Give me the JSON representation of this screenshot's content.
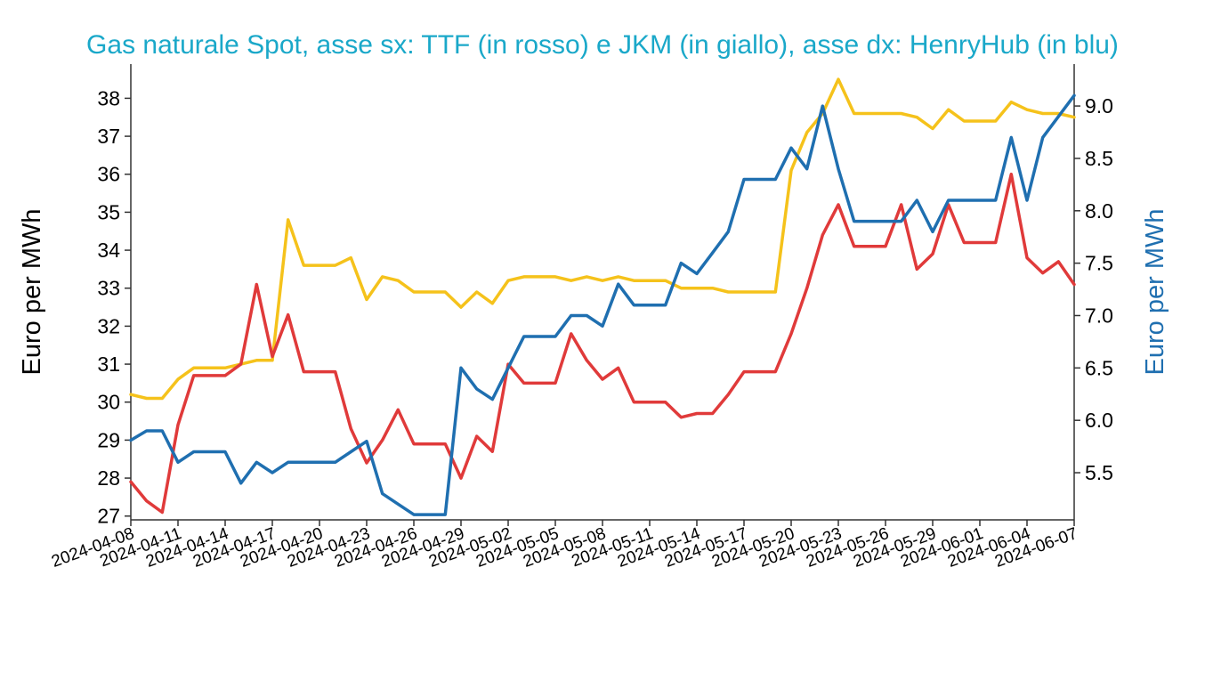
{
  "chart_data": {
    "type": "line",
    "title": "Gas naturale Spot, asse sx: TTF (in rosso) e JKM (in giallo), asse dx: HenryHub (in blu)",
    "ylabel_left": "Euro per MWh",
    "ylabel_right": "Euro per MWh",
    "x_start": "2024-04-08",
    "x_end": "2024-06-07",
    "x_tick_labels": [
      "2024-04-08",
      "2024-04-11",
      "2024-04-14",
      "2024-04-17",
      "2024-04-20",
      "2024-04-23",
      "2024-04-26",
      "2024-04-29",
      "2024-05-02",
      "2024-05-05",
      "2024-05-08",
      "2024-05-11",
      "2024-05-14",
      "2024-05-17",
      "2024-05-20",
      "2024-05-23",
      "2024-05-26",
      "2024-05-29",
      "2024-06-01",
      "2024-06-04",
      "2024-06-07"
    ],
    "y_left": {
      "min": 26.9,
      "max": 38.9,
      "ticks": [
        "27",
        "28",
        "29",
        "30",
        "31",
        "32",
        "33",
        "34",
        "35",
        "36",
        "37",
        "38"
      ]
    },
    "y_right": {
      "min": 5.05,
      "max": 9.4,
      "ticks": [
        "5.5",
        "6.0",
        "6.5",
        "7.0",
        "7.5",
        "8.0",
        "8.5",
        "9.0"
      ]
    },
    "series": [
      {
        "key": "jkm",
        "axis": "left",
        "color": "#f5c21b",
        "points": [
          [
            "2024-04-08",
            30.2
          ],
          [
            "2024-04-09",
            30.1
          ],
          [
            "2024-04-10",
            30.1
          ],
          [
            "2024-04-11",
            30.6
          ],
          [
            "2024-04-12",
            30.9
          ],
          [
            "2024-04-13",
            30.9
          ],
          [
            "2024-04-14",
            30.9
          ],
          [
            "2024-04-15",
            31.0
          ],
          [
            "2024-04-16",
            31.1
          ],
          [
            "2024-04-17",
            31.1
          ],
          [
            "2024-04-18",
            34.8
          ],
          [
            "2024-04-19",
            33.6
          ],
          [
            "2024-04-20",
            33.6
          ],
          [
            "2024-04-21",
            33.6
          ],
          [
            "2024-04-22",
            33.8
          ],
          [
            "2024-04-23",
            32.7
          ],
          [
            "2024-04-24",
            33.3
          ],
          [
            "2024-04-25",
            33.2
          ],
          [
            "2024-04-26",
            32.9
          ],
          [
            "2024-04-27",
            32.9
          ],
          [
            "2024-04-28",
            32.9
          ],
          [
            "2024-04-29",
            32.5
          ],
          [
            "2024-04-30",
            32.9
          ],
          [
            "2024-05-01",
            32.6
          ],
          [
            "2024-05-02",
            33.2
          ],
          [
            "2024-05-03",
            33.3
          ],
          [
            "2024-05-04",
            33.3
          ],
          [
            "2024-05-05",
            33.3
          ],
          [
            "2024-05-06",
            33.2
          ],
          [
            "2024-05-07",
            33.3
          ],
          [
            "2024-05-08",
            33.2
          ],
          [
            "2024-05-09",
            33.3
          ],
          [
            "2024-05-10",
            33.2
          ],
          [
            "2024-05-11",
            33.2
          ],
          [
            "2024-05-12",
            33.2
          ],
          [
            "2024-05-13",
            33.0
          ],
          [
            "2024-05-14",
            33.0
          ],
          [
            "2024-05-15",
            33.0
          ],
          [
            "2024-05-16",
            32.9
          ],
          [
            "2024-05-17",
            32.9
          ],
          [
            "2024-05-18",
            32.9
          ],
          [
            "2024-05-19",
            32.9
          ],
          [
            "2024-05-20",
            36.1
          ],
          [
            "2024-05-21",
            37.1
          ],
          [
            "2024-05-22",
            37.6
          ],
          [
            "2024-05-23",
            38.5
          ],
          [
            "2024-05-24",
            37.6
          ],
          [
            "2024-05-25",
            37.6
          ],
          [
            "2024-05-26",
            37.6
          ],
          [
            "2024-05-27",
            37.6
          ],
          [
            "2024-05-28",
            37.5
          ],
          [
            "2024-05-29",
            37.2
          ],
          [
            "2024-05-30",
            37.7
          ],
          [
            "2024-05-31",
            37.4
          ],
          [
            "2024-06-01",
            37.4
          ],
          [
            "2024-06-02",
            37.4
          ],
          [
            "2024-06-03",
            37.9
          ],
          [
            "2024-06-04",
            37.7
          ],
          [
            "2024-06-05",
            37.6
          ],
          [
            "2024-06-06",
            37.6
          ],
          [
            "2024-06-07",
            37.5
          ]
        ]
      },
      {
        "key": "ttf",
        "axis": "left",
        "color": "#e03a3a",
        "points": [
          [
            "2024-04-08",
            27.9
          ],
          [
            "2024-04-09",
            27.4
          ],
          [
            "2024-04-10",
            27.1
          ],
          [
            "2024-04-11",
            29.4
          ],
          [
            "2024-04-12",
            30.7
          ],
          [
            "2024-04-13",
            30.7
          ],
          [
            "2024-04-14",
            30.7
          ],
          [
            "2024-04-15",
            31.0
          ],
          [
            "2024-04-16",
            33.1
          ],
          [
            "2024-04-17",
            31.2
          ],
          [
            "2024-04-18",
            32.3
          ],
          [
            "2024-04-19",
            30.8
          ],
          [
            "2024-04-20",
            30.8
          ],
          [
            "2024-04-21",
            30.8
          ],
          [
            "2024-04-22",
            29.3
          ],
          [
            "2024-04-23",
            28.4
          ],
          [
            "2024-04-24",
            29.0
          ],
          [
            "2024-04-25",
            29.8
          ],
          [
            "2024-04-26",
            28.9
          ],
          [
            "2024-04-27",
            28.9
          ],
          [
            "2024-04-28",
            28.9
          ],
          [
            "2024-04-29",
            28.0
          ],
          [
            "2024-04-30",
            29.1
          ],
          [
            "2024-05-01",
            28.7
          ],
          [
            "2024-05-02",
            31.0
          ],
          [
            "2024-05-03",
            30.5
          ],
          [
            "2024-05-04",
            30.5
          ],
          [
            "2024-05-05",
            30.5
          ],
          [
            "2024-05-06",
            31.8
          ],
          [
            "2024-05-07",
            31.1
          ],
          [
            "2024-05-08",
            30.6
          ],
          [
            "2024-05-09",
            30.9
          ],
          [
            "2024-05-10",
            30.0
          ],
          [
            "2024-05-11",
            30.0
          ],
          [
            "2024-05-12",
            30.0
          ],
          [
            "2024-05-13",
            29.6
          ],
          [
            "2024-05-14",
            29.7
          ],
          [
            "2024-05-15",
            29.7
          ],
          [
            "2024-05-16",
            30.2
          ],
          [
            "2024-05-17",
            30.8
          ],
          [
            "2024-05-18",
            30.8
          ],
          [
            "2024-05-19",
            30.8
          ],
          [
            "2024-05-20",
            31.8
          ],
          [
            "2024-05-21",
            33.0
          ],
          [
            "2024-05-22",
            34.4
          ],
          [
            "2024-05-23",
            35.2
          ],
          [
            "2024-05-24",
            34.1
          ],
          [
            "2024-05-25",
            34.1
          ],
          [
            "2024-05-26",
            34.1
          ],
          [
            "2024-05-27",
            35.2
          ],
          [
            "2024-05-28",
            33.5
          ],
          [
            "2024-05-29",
            33.9
          ],
          [
            "2024-05-30",
            35.2
          ],
          [
            "2024-05-31",
            34.2
          ],
          [
            "2024-06-01",
            34.2
          ],
          [
            "2024-06-02",
            34.2
          ],
          [
            "2024-06-03",
            36.0
          ],
          [
            "2024-06-04",
            33.8
          ],
          [
            "2024-06-05",
            33.4
          ],
          [
            "2024-06-06",
            33.7
          ],
          [
            "2024-06-07",
            33.1
          ]
        ]
      },
      {
        "key": "henryhub",
        "axis": "right",
        "color": "#1f6fb0",
        "points": [
          [
            "2024-04-08",
            5.81
          ],
          [
            "2024-04-09",
            5.9
          ],
          [
            "2024-04-10",
            5.9
          ],
          [
            "2024-04-11",
            5.6
          ],
          [
            "2024-04-12",
            5.7
          ],
          [
            "2024-04-13",
            5.7
          ],
          [
            "2024-04-14",
            5.7
          ],
          [
            "2024-04-15",
            5.4
          ],
          [
            "2024-04-16",
            5.6
          ],
          [
            "2024-04-17",
            5.5
          ],
          [
            "2024-04-18",
            5.6
          ],
          [
            "2024-04-19",
            5.6
          ],
          [
            "2024-04-20",
            5.6
          ],
          [
            "2024-04-21",
            5.6
          ],
          [
            "2024-04-22",
            5.7
          ],
          [
            "2024-04-23",
            5.8
          ],
          [
            "2024-04-24",
            5.3
          ],
          [
            "2024-04-25",
            5.2
          ],
          [
            "2024-04-26",
            5.1
          ],
          [
            "2024-04-27",
            5.1
          ],
          [
            "2024-04-28",
            5.1
          ],
          [
            "2024-04-29",
            6.5
          ],
          [
            "2024-04-30",
            6.3
          ],
          [
            "2024-05-01",
            6.2
          ],
          [
            "2024-05-02",
            6.5
          ],
          [
            "2024-05-03",
            6.8
          ],
          [
            "2024-05-04",
            6.8
          ],
          [
            "2024-05-05",
            6.8
          ],
          [
            "2024-05-06",
            7.0
          ],
          [
            "2024-05-07",
            7.0
          ],
          [
            "2024-05-08",
            6.9
          ],
          [
            "2024-05-09",
            7.3
          ],
          [
            "2024-05-10",
            7.1
          ],
          [
            "2024-05-11",
            7.1
          ],
          [
            "2024-05-12",
            7.1
          ],
          [
            "2024-05-13",
            7.5
          ],
          [
            "2024-05-14",
            7.4
          ],
          [
            "2024-05-15",
            7.6
          ],
          [
            "2024-05-16",
            7.8
          ],
          [
            "2024-05-17",
            8.3
          ],
          [
            "2024-05-18",
            8.3
          ],
          [
            "2024-05-19",
            8.3
          ],
          [
            "2024-05-20",
            8.6
          ],
          [
            "2024-05-21",
            8.4
          ],
          [
            "2024-05-22",
            9.0
          ],
          [
            "2024-05-23",
            8.4
          ],
          [
            "2024-05-24",
            7.9
          ],
          [
            "2024-05-25",
            7.9
          ],
          [
            "2024-05-26",
            7.9
          ],
          [
            "2024-05-27",
            7.9
          ],
          [
            "2024-05-28",
            8.1
          ],
          [
            "2024-05-29",
            7.8
          ],
          [
            "2024-05-30",
            8.1
          ],
          [
            "2024-05-31",
            8.1
          ],
          [
            "2024-06-01",
            8.1
          ],
          [
            "2024-06-02",
            8.1
          ],
          [
            "2024-06-03",
            8.7
          ],
          [
            "2024-06-04",
            8.1
          ],
          [
            "2024-06-05",
            8.7
          ],
          [
            "2024-06-06",
            8.9
          ],
          [
            "2024-06-07",
            9.1
          ]
        ]
      }
    ]
  }
}
